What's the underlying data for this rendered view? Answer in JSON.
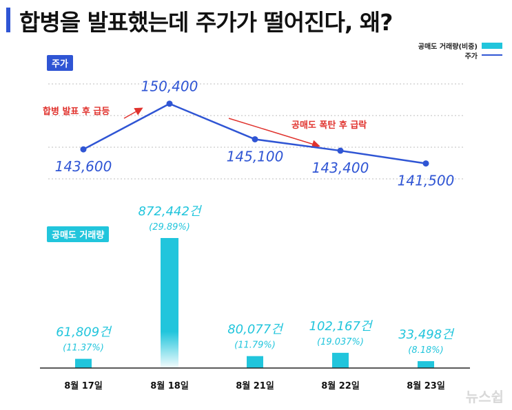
{
  "title": "합병을 발표했는데 주가가 떨어진다, 왜?",
  "legend": {
    "volume_label": "공매도 거래량(비중)",
    "price_label": "주가"
  },
  "badges": {
    "price": "주가",
    "volume": "공매도 거래량"
  },
  "annotations": {
    "rise": "합병 발표 후 급등",
    "fall": "공매도 폭탄 후 급락"
  },
  "watermark": "뉴스쉽",
  "colors": {
    "price_line": "#2f55d4",
    "volume_bar": "#21c5dc",
    "annotation_arrow": "#e0322d"
  },
  "chart_data": {
    "type": "line+bar",
    "categories": [
      "8월 17일",
      "8월 18일",
      "8월 21일",
      "8월 22일",
      "8월 23일"
    ],
    "price": {
      "name": "주가",
      "values": [
        143600,
        150400,
        145100,
        143400,
        141500
      ],
      "labels": [
        "143,600",
        "150,400",
        "145,100",
        "143,400",
        "141,500"
      ]
    },
    "short_volume": {
      "name": "공매도 거래량(비중)",
      "values": [
        61809,
        872442,
        80077,
        102167,
        33498
      ],
      "labels": [
        "61,809건",
        "872,442건",
        "80,077건",
        "102,167건",
        "33,498건"
      ],
      "share_labels": [
        "(11.37%)",
        "(29.89%)",
        "(11.79%)",
        "(19.037%)",
        "(8.18%)"
      ]
    }
  }
}
